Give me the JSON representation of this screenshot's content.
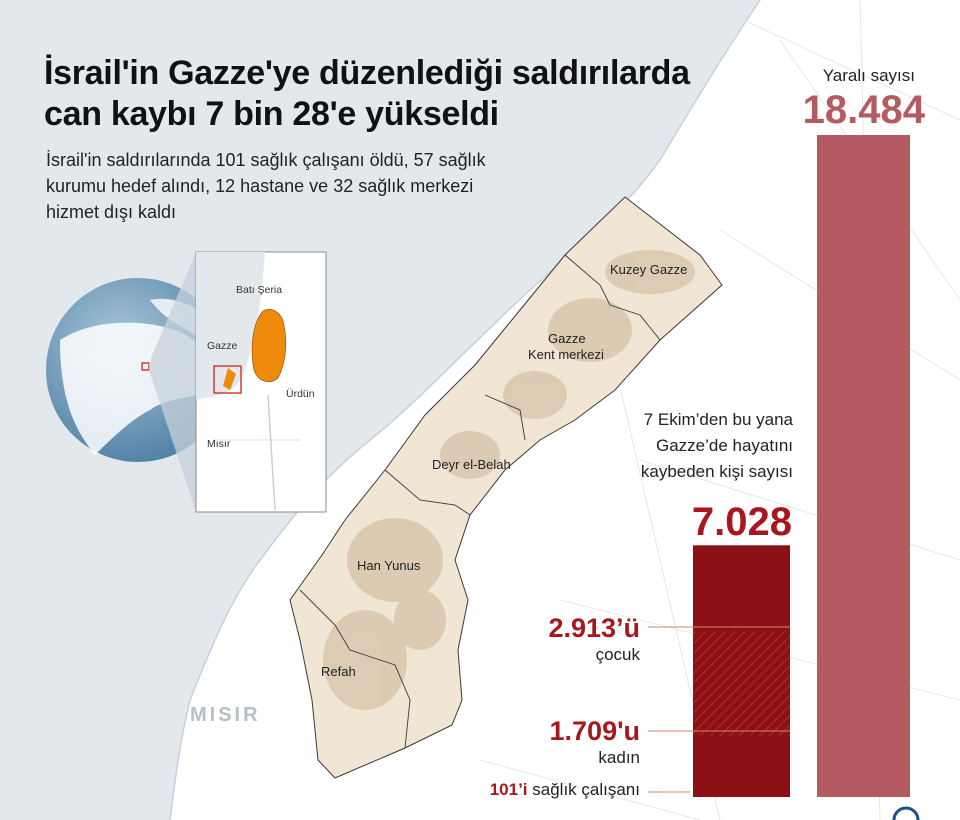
{
  "header": {
    "title_line1": "İsrail'in Gazze'ye düzenlediği saldırılarda",
    "title_line2": "can kaybı 7 bin 28'e yükseldi",
    "subtitle_line1": "İsrail'in saldırılarında 101 sağlık çalışanı öldü, 57 sağlık",
    "subtitle_line2": "kurumu hedef alındı, 12 hastane ve 32 sağlık merkezi",
    "subtitle_line3": "hizmet dışı kaldı"
  },
  "map": {
    "regions": [
      "Kuzey Gazze",
      "Gazze",
      "Kent merkezi",
      "Deyr el-Belah",
      "Han Yunus",
      "Refah"
    ],
    "country_label": "MISIR",
    "inset_labels": [
      "Batı Şeria",
      "Gazze",
      "Ürdün",
      "Mısır"
    ]
  },
  "colors": {
    "injured_bar": "#b35b60",
    "death_bar": "#8c1116",
    "accent_red": "#a8171d",
    "orange": "#f08a0a",
    "sea": "#e3e8ed",
    "land": "#f1e5d4"
  },
  "chart_data": {
    "type": "bar",
    "injured": {
      "label": "Yaralı sayısı",
      "value": 18484,
      "value_label": "18.484"
    },
    "deaths": {
      "label_line1": "7 Ekim’den bu yana",
      "label_line2": "Gazze’de hayatını",
      "label_line3": "kaybeden kişi sayısı",
      "value": 7028,
      "value_label": "7.028",
      "breakdown": [
        {
          "name": "çocuk",
          "value": 2913,
          "value_label": "2.913’ü"
        },
        {
          "name": "kadın",
          "value": 1709,
          "value_label": "1.709'u"
        },
        {
          "name": "sağlık çalışanı",
          "value": 101,
          "value_label": "101’i"
        }
      ]
    }
  }
}
